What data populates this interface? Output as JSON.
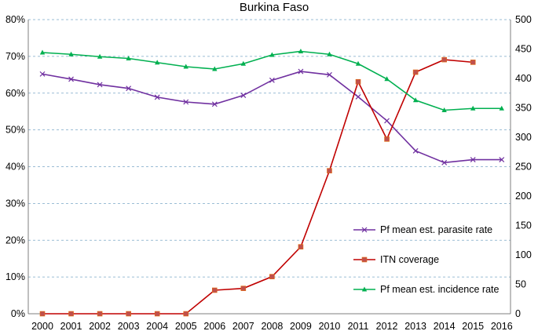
{
  "chart_data": {
    "type": "line",
    "title": "Burkina Faso",
    "x": [
      2000,
      2001,
      2002,
      2003,
      2004,
      2005,
      2006,
      2007,
      2008,
      2009,
      2010,
      2011,
      2012,
      2013,
      2014,
      2015,
      2016
    ],
    "x_tick_labels": [
      "2000",
      "2001",
      "2002",
      "2003",
      "2004",
      "2005",
      "2006",
      "2007",
      "2008",
      "2009",
      "2010",
      "2011",
      "2012",
      "2013",
      "2014",
      "2015",
      "2016"
    ],
    "y_left": {
      "ylim": [
        0,
        80
      ],
      "ticks": [
        0,
        10,
        20,
        30,
        40,
        50,
        60,
        70,
        80
      ],
      "tick_labels": [
        "0%",
        "10%",
        "20%",
        "30%",
        "40%",
        "50%",
        "60%",
        "70%",
        "80%"
      ]
    },
    "y_right": {
      "ylim": [
        0,
        500
      ],
      "ticks": [
        0,
        50,
        100,
        150,
        200,
        250,
        300,
        350,
        400,
        450,
        500
      ],
      "tick_labels": [
        "0",
        "50",
        "100",
        "150",
        "200",
        "250",
        "300",
        "350",
        "400",
        "450",
        "500"
      ]
    },
    "grid": "horizontal dashed",
    "legend_position": "lower-right",
    "series": [
      {
        "name": "Pf mean est. parasite rate",
        "axis": "left",
        "color": "#7030A0",
        "marker": "x",
        "values": [
          65.2,
          63.8,
          62.3,
          61.3,
          58.9,
          57.6,
          57.0,
          59.4,
          63.5,
          65.9,
          65.0,
          59.0,
          52.5,
          44.3,
          41.1,
          41.9,
          41.9
        ]
      },
      {
        "name": "ITN coverage",
        "axis": "left",
        "color": "#C0504D",
        "line_color": "#C00000",
        "marker": "square",
        "values": [
          0,
          0,
          0,
          0,
          0,
          0,
          6.4,
          6.9,
          10.1,
          18.2,
          38.9,
          63.1,
          47.5,
          65.7,
          69.1,
          68.4,
          null
        ]
      },
      {
        "name": "Pf mean est. incidence rate",
        "axis": "right",
        "color": "#00B050",
        "marker": "triangle",
        "values": [
          444,
          441,
          437,
          434,
          427,
          420,
          416,
          425,
          440,
          446,
          441,
          425,
          399,
          363,
          346,
          349,
          349
        ]
      }
    ]
  }
}
